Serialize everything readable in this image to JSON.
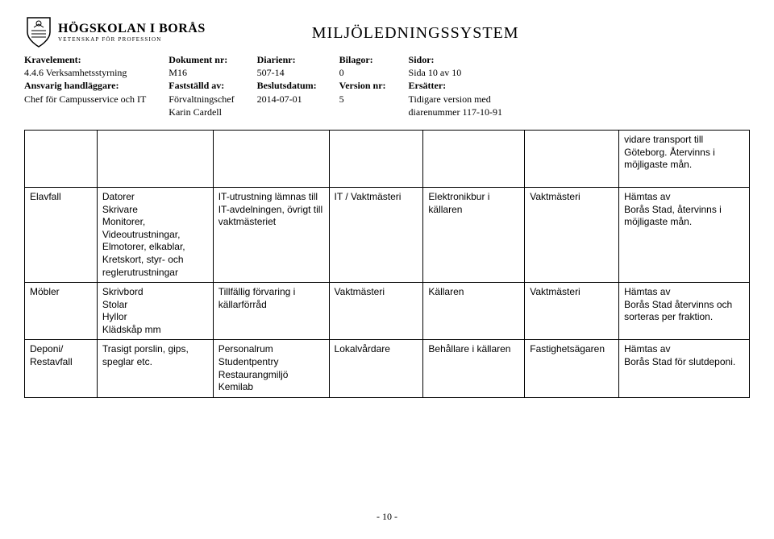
{
  "header": {
    "logo_main": "HÖGSKOLAN I BORÅS",
    "logo_sub": "VETENSKAP FÖR PROFESSION",
    "title": "MILJÖLEDNINGSSYSTEM"
  },
  "meta": {
    "c1": {
      "l1b": "Kravelement:",
      "l2": "4.4.6 Verksamhetsstyrning",
      "l3b": "Ansvarig handläggare:",
      "l4": "Chef för Campusservice och IT"
    },
    "c2": {
      "l1b": "Dokument nr:",
      "l2": "M16",
      "l3b": "Fastställd av:",
      "l4": "Förvaltningschef",
      "l5": "Karin Cardell"
    },
    "c3": {
      "l1b": "Diarienr:",
      "l2": "507-14",
      "l3b": "Beslutsdatum:",
      "l4": "2014-07-01"
    },
    "c4": {
      "l1b": "Bilagor:",
      "l2": "0",
      "l3b": "Version nr:",
      "l4": "5"
    },
    "c5": {
      "l1b": "Sidor:",
      "l2": "Sida 10 av 10",
      "l3b": "Ersätter:",
      "l4": "Tidigare version med",
      "l5": "diarenummer 117-10-91"
    }
  },
  "table": {
    "rows": [
      {
        "c0": "",
        "c1": "",
        "c2": "",
        "c3": "",
        "c4": "",
        "c5": "",
        "c6": "vidare transport till Göteborg. Återvinns i möjligaste mån."
      },
      {
        "c0": "Elavfall",
        "c1": "Datorer\nSkrivare\nMonitorer,\nVideoutrustningar,\nElmotorer, elkablar,\nKretskort, styr- och reglerutrustningar",
        "c2": "IT-utrustning lämnas till IT-avdelningen, övrigt till vaktmästeriet",
        "c3": "IT / Vaktmästeri",
        "c4": "Elektronikbur i källaren",
        "c5": "Vaktmästeri",
        "c6": "Hämtas av\nBorås Stad, återvinns i möjligaste mån."
      },
      {
        "c0": "Möbler",
        "c1": "Skrivbord\nStolar\nHyllor\nKlädskåp mm",
        "c2": "Tillfällig förvaring i källarförråd",
        "c3": "Vaktmästeri",
        "c4": "Källaren",
        "c5": "Vaktmästeri",
        "c6": "Hämtas av\nBorås Stad återvinns och sorteras per fraktion."
      },
      {
        "c0": "Deponi/\nRestavfall",
        "c1": "Trasigt porslin, gips, speglar etc.",
        "c2": "Personalrum\nStudentpentry\nRestaurangmiljö\nKemilab",
        "c3": "Lokalvårdare",
        "c4": "Behållare i källaren",
        "c5": "Fastighetsägaren",
        "c6": "Hämtas av\nBorås Stad för slutdeponi."
      }
    ]
  },
  "footer": "- 10 -"
}
